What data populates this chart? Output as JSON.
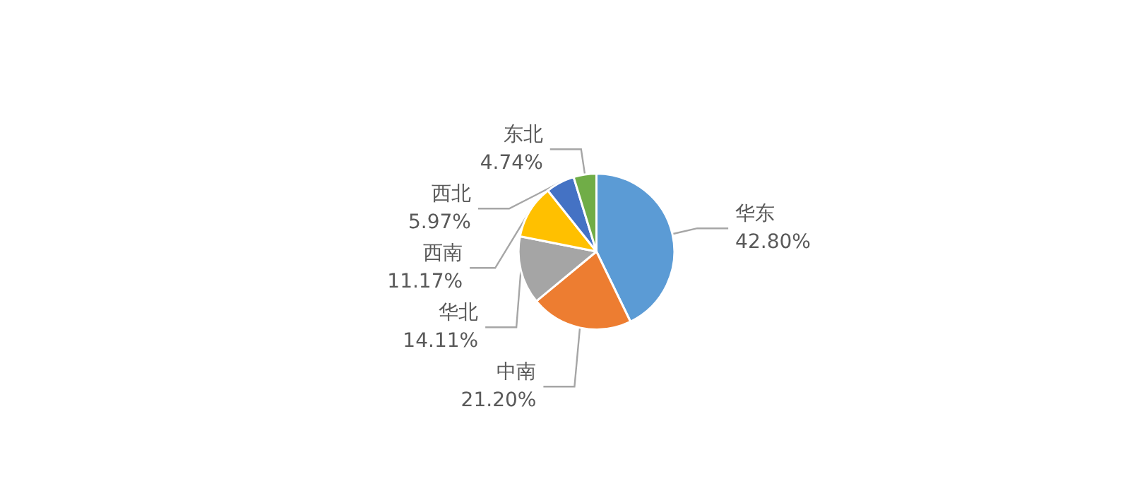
{
  "chart_data": {
    "type": "pie",
    "categories": [
      "华东",
      "中南",
      "华北",
      "西南",
      "西北",
      "东北"
    ],
    "values": [
      42.8,
      21.2,
      14.11,
      11.17,
      5.97,
      4.74
    ],
    "value_labels": [
      "42.80%",
      "21.20%",
      "14.11%",
      "11.17%",
      "5.97%",
      "4.74%"
    ],
    "colors": [
      "#5b9bd5",
      "#ed7d31",
      "#a5a5a5",
      "#ffc000",
      "#4472c4",
      "#70ad47"
    ],
    "legend": false
  }
}
